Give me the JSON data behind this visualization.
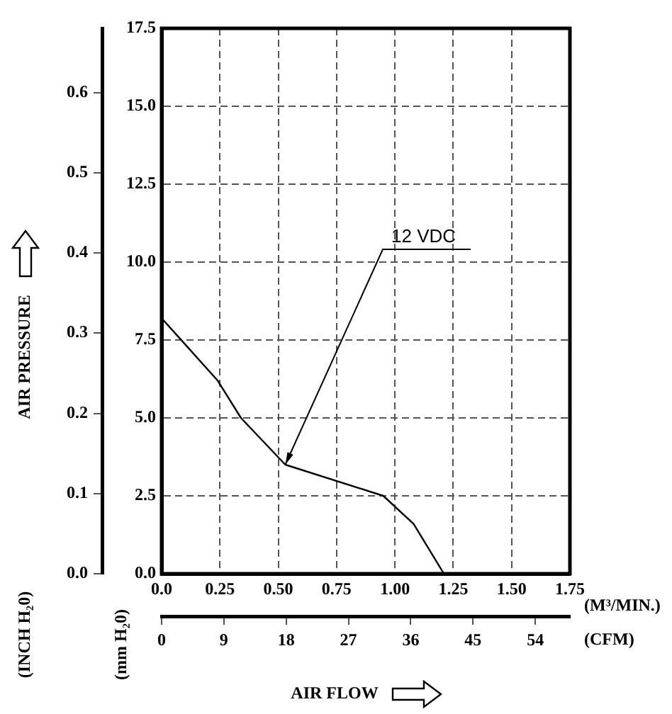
{
  "chart_data": {
    "type": "line",
    "xlabel": "(M³/MIN.)",
    "ylabel": "(mm H₂0)",
    "x2label": "(CFM)",
    "y2label": "(INCH H₂0)",
    "annotations": [
      "AIR PRESSURE",
      "AIR FLOW",
      {
        "text": "12 VDC",
        "x": 0.53,
        "y": 3.5
      }
    ],
    "x": [
      0,
      0.24,
      0.34,
      0.53,
      0.95,
      1.08,
      1.21
    ],
    "values": [
      8.2,
      6.2,
      5.0,
      3.5,
      2.5,
      1.6,
      0
    ],
    "color": "#000000",
    "marker": "none",
    "grid": true,
    "xlim": [
      0,
      1.75
    ],
    "xticks": [
      {
        "value": 0,
        "label": "0.0"
      },
      0.25,
      {
        "value": 0.5,
        "label": "0.50"
      },
      0.75,
      {
        "value": 1,
        "label": "1.00"
      },
      1.25,
      {
        "value": 1.5,
        "label": "1.50"
      },
      1.75
    ],
    "ylim": [
      0,
      17.5
    ],
    "yticks": [
      {
        "value": 0,
        "label": "0.0"
      },
      2.5,
      {
        "value": 5,
        "label": "5.0"
      },
      7.5,
      {
        "value": 10,
        "label": "10.0"
      },
      12.5,
      {
        "value": 15,
        "label": "15.0"
      },
      17.5
    ],
    "y2lim": [
      0,
      0.68
    ],
    "y2ticks": [
      {
        "value": 0,
        "label": "0.0"
      },
      0.1,
      0.2,
      0.3,
      0.4,
      0.5,
      0.6
    ],
    "x2lim": [
      0,
      59
    ],
    "x2ticks": [
      0,
      9,
      18,
      27,
      36,
      45,
      54
    ]
  }
}
